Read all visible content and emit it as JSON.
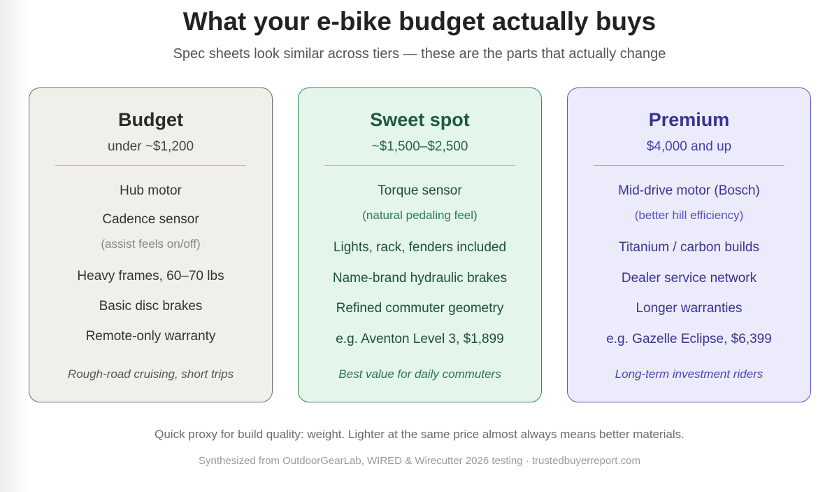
{
  "title": "What your e-bike budget actually buys",
  "subtitle": "Spec sheets look similar across tiers — these are the parts that actually change",
  "tiers": [
    {
      "name": "Budget",
      "price": "under ~$1,200",
      "features": [
        "Hub motor",
        "Cadence sensor",
        "(assist feels on/off)",
        "Heavy frames, 60–70 lbs",
        "Basic disc brakes",
        "Remote-only warranty"
      ],
      "tagline": "Rough-road cruising, short trips"
    },
    {
      "name": "Sweet spot",
      "price": "~$1,500–$2,500",
      "features": [
        "Torque sensor",
        "(natural pedaling feel)",
        "Lights, rack, fenders included",
        "Name-brand hydraulic brakes",
        "Refined commuter geometry",
        "e.g. Aventon Level 3, $1,899"
      ],
      "tagline": "Best value for daily commuters"
    },
    {
      "name": "Premium",
      "price": "$4,000 and up",
      "features": [
        "Mid-drive motor (Bosch)",
        "(better hill efficiency)",
        "Titanium / carbon builds",
        "Dealer service network",
        "Longer warranties",
        "e.g. Gazelle Eclipse, $6,399"
      ],
      "tagline": "Long-term investment riders"
    }
  ],
  "footnote": "Quick proxy for build quality: weight. Lighter at the same price almost always means better materials.",
  "source": "Synthesized from OutdoorGearLab, WIRED & Wirecutter 2026 testing · trustedbuyerreport.com",
  "colors": {
    "budget_accent": "#6f6d68",
    "sweet_accent": "#2e8a5f",
    "premium_accent": "#5a54c4"
  }
}
